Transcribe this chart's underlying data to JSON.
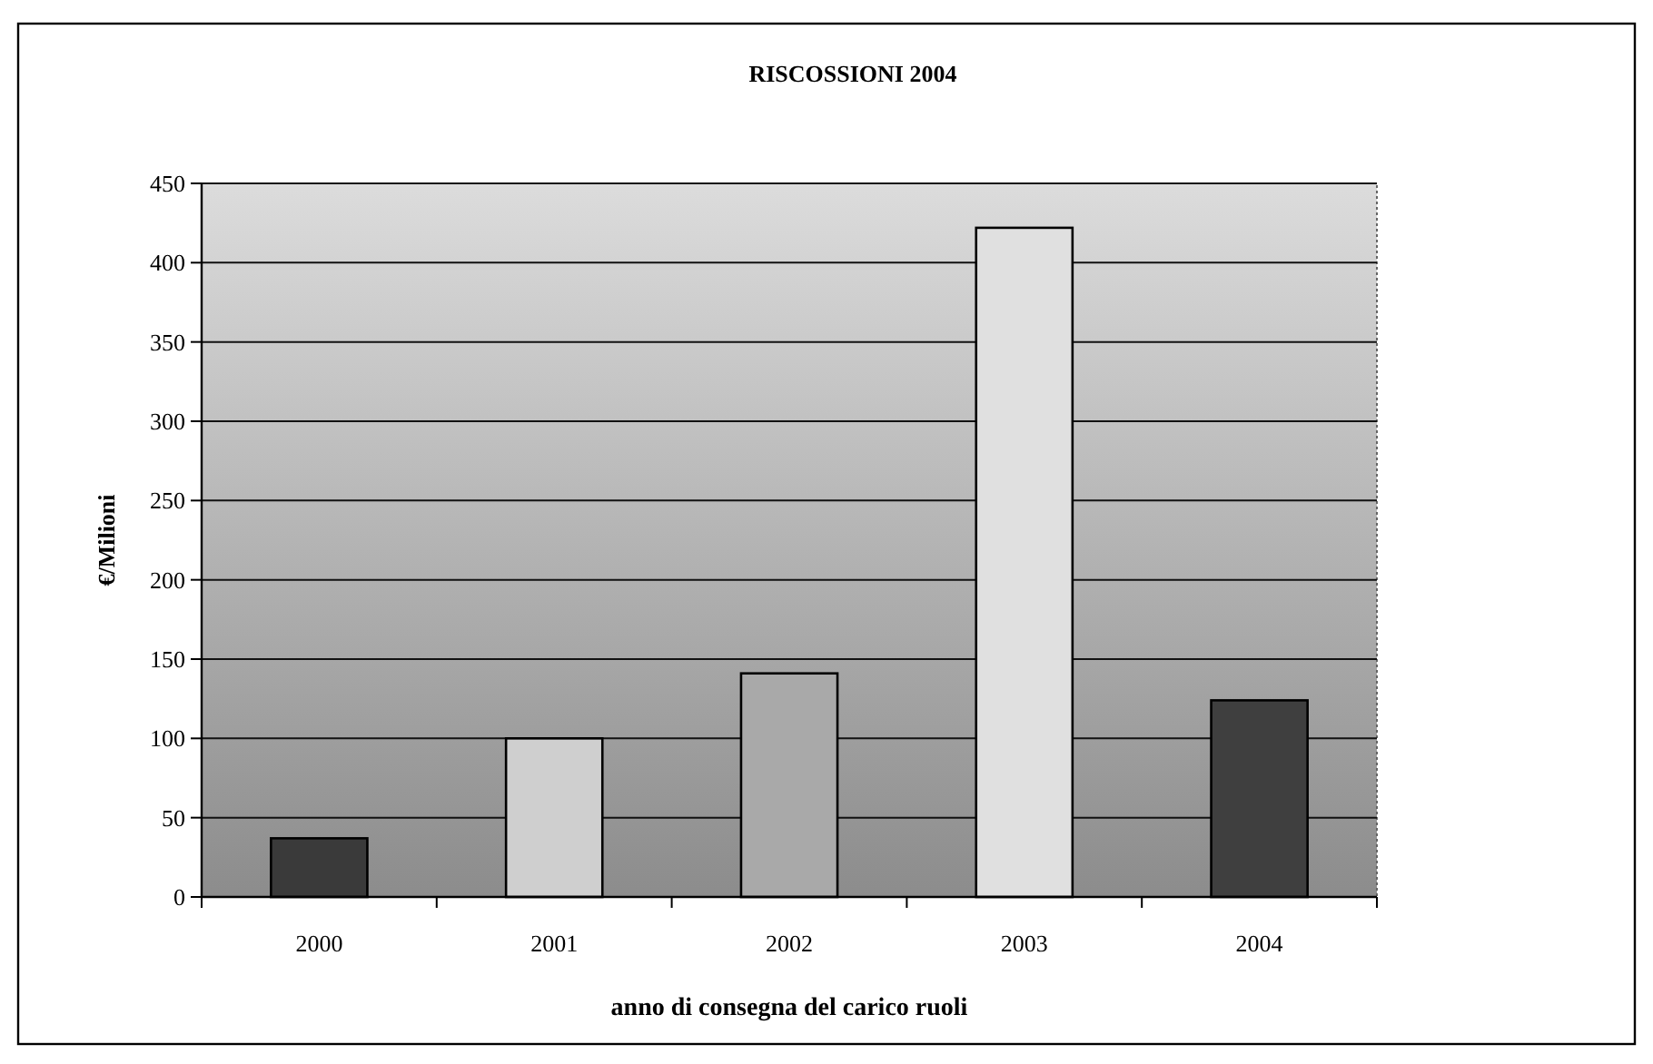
{
  "chart_data": {
    "type": "bar",
    "title": "RISCOSSIONI 2004",
    "xlabel": "anno di consegna del carico ruoli",
    "ylabel": "€/Milioni",
    "categories": [
      "2000",
      "2001",
      "2002",
      "2003",
      "2004"
    ],
    "values": [
      37,
      100,
      141,
      422,
      124
    ],
    "colors": [
      "#3a3a3a",
      "#cfcfcf",
      "#a9a9a9",
      "#e0e0e0",
      "#3f3f3f"
    ],
    "ylim": [
      0,
      450
    ],
    "yticks": [
      0,
      50,
      100,
      150,
      200,
      250,
      300,
      350,
      400,
      450
    ],
    "grid": true
  }
}
